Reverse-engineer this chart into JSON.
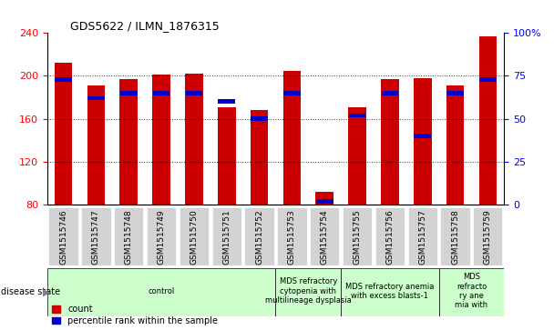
{
  "title": "GDS5622 / ILMN_1876315",
  "samples": [
    "GSM1515746",
    "GSM1515747",
    "GSM1515748",
    "GSM1515749",
    "GSM1515750",
    "GSM1515751",
    "GSM1515752",
    "GSM1515753",
    "GSM1515754",
    "GSM1515755",
    "GSM1515756",
    "GSM1515757",
    "GSM1515758",
    "GSM1515759"
  ],
  "counts": [
    212,
    191,
    197,
    201,
    202,
    171,
    168,
    205,
    92,
    171,
    197,
    198,
    191,
    237
  ],
  "percentile_ranks": [
    73,
    62,
    65,
    65,
    65,
    60,
    50,
    65,
    2,
    52,
    65,
    40,
    65,
    73
  ],
  "y_min": 80,
  "y_max": 240,
  "yticks_left": [
    80,
    120,
    160,
    200,
    240
  ],
  "yticks_right": [
    0,
    25,
    50,
    75,
    100
  ],
  "bar_color": "#cc0000",
  "percentile_color": "#0000cc",
  "bar_width": 0.55,
  "disease_groups": [
    {
      "label": "control",
      "start": 0,
      "end": 7,
      "color": "#ccffcc"
    },
    {
      "label": "MDS refractory\ncytopenia with\nmultilineage dysplasia",
      "start": 7,
      "end": 9,
      "color": "#ccffcc"
    },
    {
      "label": "MDS refractory anemia\nwith excess blasts-1",
      "start": 9,
      "end": 12,
      "color": "#ccffcc"
    },
    {
      "label": "MDS\nrefracto\nry ane\nmia with",
      "start": 12,
      "end": 14,
      "color": "#ccffcc"
    }
  ],
  "legend_count_label": "count",
  "legend_percentile_label": "percentile rank within the sample",
  "tick_bg_color": "#d3d3d3"
}
